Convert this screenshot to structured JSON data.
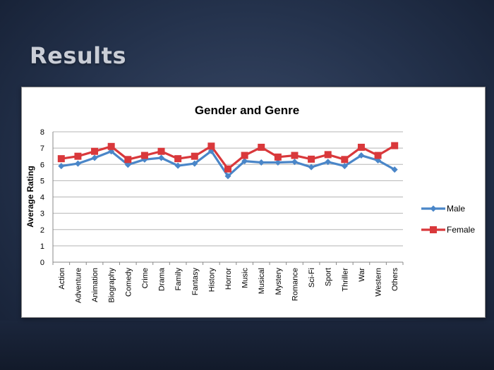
{
  "slide": {
    "title": "Results"
  },
  "chart_data": {
    "type": "line",
    "title": "Gender and Genre",
    "xlabel": "",
    "ylabel": "Average Rating",
    "ylim": [
      0,
      8
    ],
    "yticks": [
      0,
      1,
      2,
      3,
      4,
      5,
      6,
      7,
      8
    ],
    "grid": true,
    "legend": "right",
    "categories": [
      "Action",
      "Adventure",
      "Animation",
      "Biography",
      "Comedy",
      "Crime",
      "Drama",
      "Family",
      "Fantasy",
      "History",
      "Horror",
      "Music",
      "Musical",
      "Mystery",
      "Romance",
      "Sci-Fi",
      "Sport",
      "Thriller",
      "War",
      "Western",
      "Others"
    ],
    "series": [
      {
        "name": "Male",
        "color": "#4a86c8",
        "marker": "diamond",
        "values": [
          5.9,
          6.05,
          6.4,
          6.8,
          5.98,
          6.3,
          6.4,
          5.92,
          6.05,
          6.82,
          5.28,
          6.2,
          6.12,
          6.12,
          6.15,
          5.83,
          6.15,
          5.9,
          6.55,
          6.25,
          5.68
        ]
      },
      {
        "name": "Female",
        "color": "#d9383b",
        "marker": "square",
        "values": [
          6.35,
          6.5,
          6.8,
          7.1,
          6.3,
          6.55,
          6.8,
          6.35,
          6.5,
          7.12,
          5.72,
          6.55,
          7.05,
          6.45,
          6.55,
          6.32,
          6.6,
          6.3,
          7.05,
          6.55,
          7.15
        ]
      }
    ]
  }
}
